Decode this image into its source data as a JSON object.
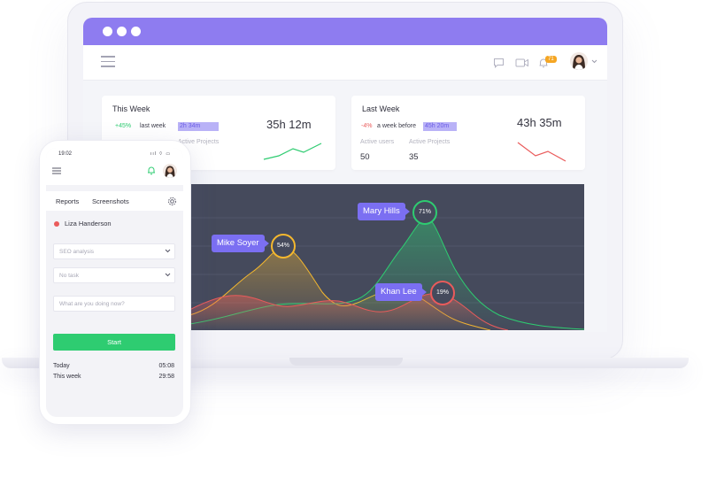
{
  "colors": {
    "titlebar": "#8e7cf0",
    "accent": "#7b6ff2",
    "green": "#2ecc71",
    "red": "#ea5b5b",
    "yellow": "#f5b82e",
    "chart_bg": "#454a5c"
  },
  "header": {
    "notification_count": "71"
  },
  "this_week": {
    "title": "This Week",
    "change": "+45%",
    "compare_label": "last week",
    "compare_value": "2h 34m",
    "total": "35h 12m",
    "active_projects_label": "Active Projects"
  },
  "last_week": {
    "title": "Last Week",
    "change": "-4%",
    "compare_label": "a week before",
    "compare_value": "45h 20m",
    "total": "43h 35m",
    "active_users_label": "Active users",
    "active_users": "50",
    "active_projects_label": "Active Projects",
    "active_projects": "35"
  },
  "chart_data": {
    "type": "area",
    "series": [
      {
        "name": "Mike Soyer",
        "percent": "54%",
        "color": "#f5b82e"
      },
      {
        "name": "Mary Hills",
        "percent": "71%",
        "color": "#2ecc71"
      },
      {
        "name": "Khan Lee",
        "percent": "19%",
        "color": "#ea5b5b"
      }
    ]
  },
  "phone": {
    "time": "19:02",
    "status": "ııl ⌔ ▭",
    "tabs": [
      "Reports",
      "Screenshots"
    ],
    "user": "Liza Handerson",
    "project_select": "SEO analysis",
    "task_select": "No task",
    "input_placeholder": "What are you doing now?",
    "start_label": "Start",
    "stats": [
      {
        "label": "Today",
        "value": "05:08"
      },
      {
        "label": "This week",
        "value": "29:58"
      }
    ]
  },
  "icons": [
    "menu-icon",
    "chat-icon",
    "video-icon",
    "bell-icon",
    "chevron-down-icon",
    "gear-icon"
  ]
}
